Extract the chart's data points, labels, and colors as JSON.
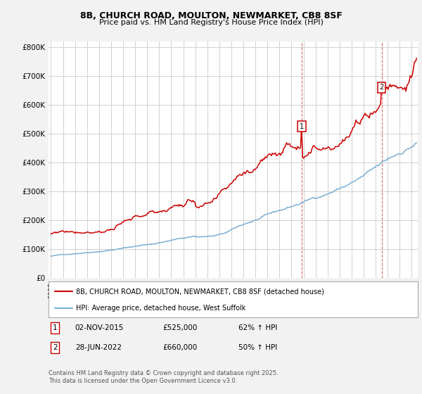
{
  "title": "8B, CHURCH ROAD, MOULTON, NEWMARKET, CB8 8SF",
  "subtitle": "Price paid vs. HM Land Registry's House Price Index (HPI)",
  "ylabel_ticks": [
    "£0",
    "£100K",
    "£200K",
    "£300K",
    "£400K",
    "£500K",
    "£600K",
    "£700K",
    "£800K"
  ],
  "ytick_values": [
    0,
    100000,
    200000,
    300000,
    400000,
    500000,
    600000,
    700000,
    800000
  ],
  "ylim": [
    0,
    820000
  ],
  "xlim_start": 1994.8,
  "xlim_end": 2025.5,
  "property_color": "#cc0000",
  "hpi_color": "#7aafd4",
  "marker1_date": 2015.84,
  "marker1_price": 525000,
  "marker2_date": 2022.49,
  "marker2_price": 660000,
  "legend_property": "8B, CHURCH ROAD, MOULTON, NEWMARKET, CB8 8SF (detached house)",
  "legend_hpi": "HPI: Average price, detached house, West Suffolk",
  "footnote": "Contains HM Land Registry data © Crown copyright and database right 2025.\nThis data is licensed under the Open Government Licence v3.0.",
  "background_color": "#f2f2f2",
  "plot_bg_color": "#ffffff",
  "grid_color": "#d0d0d0"
}
